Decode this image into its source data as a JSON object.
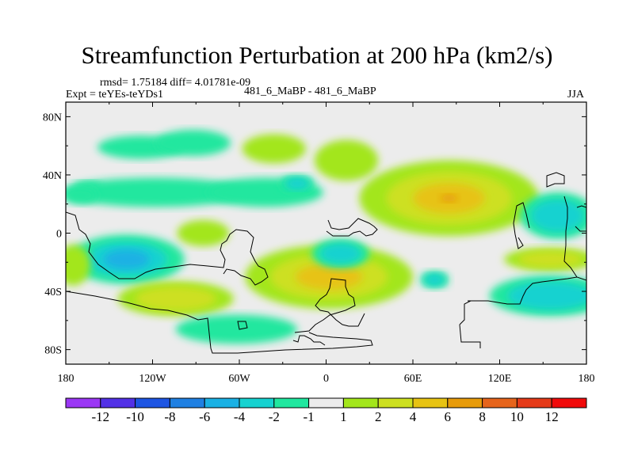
{
  "title": "Streamfunction Perturbation at 200 hPa (km2/s)",
  "stats": "rmsd= 1.75184 diff= 4.01781e-09",
  "experiment": "Expt = teYEs-teYDs1",
  "case_label": "481_6_MaBP - 481_6_MaBP",
  "season": "JJA",
  "chart_data": {
    "type": "heatmap",
    "title": "Streamfunction Perturbation at 200 hPa (km2/s)",
    "xlabel": "",
    "ylabel": "",
    "xlim": [
      -180,
      180
    ],
    "ylim": [
      -90,
      90
    ],
    "x_ticks": [
      {
        "value": -180,
        "label": "180"
      },
      {
        "value": -120,
        "label": "120W"
      },
      {
        "value": -60,
        "label": "60W"
      },
      {
        "value": 0,
        "label": "0"
      },
      {
        "value": 60,
        "label": "60E"
      },
      {
        "value": 120,
        "label": "120E"
      },
      {
        "value": 180,
        "label": "180"
      }
    ],
    "y_ticks": [
      {
        "value": 80,
        "label": "80N"
      },
      {
        "value": 40,
        "label": "40N"
      },
      {
        "value": 0,
        "label": "0"
      },
      {
        "value": -40,
        "label": "40S"
      },
      {
        "value": -80,
        "label": "80S"
      }
    ],
    "colorbar": {
      "labels": [
        "-12",
        "-10",
        "-8",
        "-6",
        "-4",
        "-2",
        "-1",
        "1",
        "2",
        "4",
        "6",
        "8",
        "10",
        "12"
      ],
      "colors": [
        "#9b37f5",
        "#5231e6",
        "#1d55e3",
        "#1f80e2",
        "#1ab1e4",
        "#16d2d0",
        "#20e79f",
        "#ececec",
        "#a3e61b",
        "#cde020",
        "#e7c313",
        "#e79b0a",
        "#e6641b",
        "#e53a18",
        "#f00a0a"
      ]
    },
    "anomalies": [
      {
        "lon": -128,
        "lat": 59,
        "rlon": 30,
        "rlat": 8,
        "levels": [
          "-1"
        ]
      },
      {
        "lon": -92,
        "lat": 62,
        "rlon": 26,
        "rlat": 9,
        "levels": [
          "-1"
        ]
      },
      {
        "lon": -165,
        "lat": 33,
        "rlon": 10,
        "rlat": 3,
        "levels": [
          "-1"
        ]
      },
      {
        "lon": -118,
        "lat": 28,
        "rlon": 65,
        "rlat": 10,
        "levels": [
          "-1"
        ]
      },
      {
        "lon": -42,
        "lat": 28,
        "rlon": 40,
        "rlat": 10,
        "levels": [
          "-1"
        ]
      },
      {
        "lon": -20,
        "lat": 34,
        "rlon": 12,
        "rlat": 6,
        "levels": [
          "-1",
          "-2"
        ]
      },
      {
        "lon": -170,
        "lat": 26,
        "rlon": 12,
        "rlat": 6,
        "levels": [
          "-1"
        ]
      },
      {
        "lon": -36,
        "lat": 58,
        "rlon": 22,
        "rlat": 10,
        "levels": [
          "1"
        ]
      },
      {
        "lon": 14,
        "lat": 50,
        "rlon": 22,
        "rlat": 14,
        "levels": [
          "1"
        ]
      },
      {
        "lon": 85,
        "lat": 24,
        "rlon": 62,
        "rlat": 26,
        "levels": [
          "1",
          "2",
          "4",
          "6"
        ]
      },
      {
        "lon": 2,
        "lat": -30,
        "rlon": 58,
        "rlat": 22,
        "levels": [
          "1",
          "2",
          "4"
        ]
      },
      {
        "lon": -85,
        "lat": 0,
        "rlon": 18,
        "rlat": 9,
        "levels": [
          "1"
        ]
      },
      {
        "lon": -138,
        "lat": -18,
        "rlon": 40,
        "rlat": 17,
        "levels": [
          "-1",
          "-2",
          "-4"
        ]
      },
      {
        "lon": -175,
        "lat": -22,
        "rlon": 12,
        "rlat": 14,
        "levels": [
          "1"
        ]
      },
      {
        "lon": -104,
        "lat": -45,
        "rlon": 40,
        "rlat": 12,
        "levels": [
          "1",
          "2"
        ]
      },
      {
        "lon": -62,
        "lat": -66,
        "rlon": 42,
        "rlat": 10,
        "levels": [
          "-1"
        ]
      },
      {
        "lon": 10,
        "lat": -14,
        "rlon": 20,
        "rlat": 10,
        "levels": [
          "-1",
          "-2"
        ]
      },
      {
        "lon": 75,
        "lat": -32,
        "rlon": 10,
        "rlat": 6,
        "levels": [
          "-1",
          "-2"
        ]
      },
      {
        "lon": 160,
        "lat": 12,
        "rlon": 26,
        "rlat": 16,
        "levels": [
          "-1",
          "-2"
        ]
      },
      {
        "lon": 155,
        "lat": -18,
        "rlon": 32,
        "rlat": 8,
        "levels": [
          "1",
          "2"
        ]
      },
      {
        "lon": 155,
        "lat": -43,
        "rlon": 42,
        "rlat": 14,
        "levels": [
          "-1",
          "-2"
        ]
      }
    ]
  }
}
